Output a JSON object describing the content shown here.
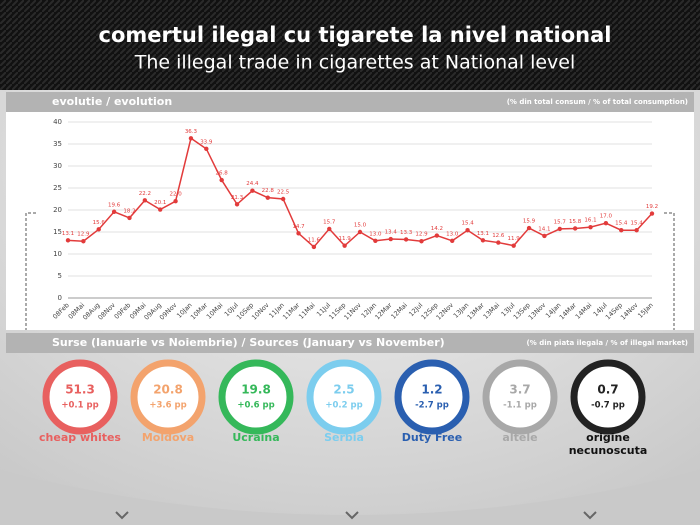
{
  "header": {
    "title": "comertul ilegal cu tigarete la nivel national",
    "subtitle": "The illegal trade in cigarettes at National level"
  },
  "chart_data": {
    "type": "line",
    "title": "evolutie / evolution",
    "subtitle": "(% din total consum / % of total consumption)",
    "categories": [
      "08Feb",
      "08Mai",
      "08Aug",
      "08Nov",
      "09Feb",
      "09Mai",
      "09Aug",
      "09Nov",
      "10Jan",
      "10Mar",
      "10Mai",
      "10Jul",
      "10Sep",
      "10Nov",
      "11Jan",
      "11Mar",
      "11Mai",
      "11Jul",
      "11Sep",
      "11Nov",
      "12Jan",
      "12Mar",
      "12Mai",
      "12Jul",
      "12Sep",
      "12Nov",
      "13Jan",
      "13Mar",
      "13Mai",
      "13Jul",
      "13Sep",
      "13Nov",
      "14Jan",
      "14Mar",
      "14Mai",
      "14Jul",
      "14Sep",
      "14Nov",
      "15Jan"
    ],
    "values": [
      13.1,
      12.9,
      15.6,
      19.6,
      18.2,
      22.2,
      20.1,
      22.0,
      36.3,
      33.9,
      26.8,
      21.3,
      24.4,
      22.8,
      22.5,
      14.7,
      11.6,
      15.7,
      11.9,
      15.0,
      13.0,
      13.4,
      13.3,
      12.9,
      14.2,
      13.0,
      15.4,
      13.1,
      12.6,
      11.9,
      15.9,
      14.1,
      15.7,
      15.8,
      16.1,
      17.0,
      15.4,
      15.4,
      19.2
    ],
    "value_labels": [
      "13.1",
      "12.9",
      "15.6",
      "19.6",
      "18.2",
      "22.2",
      "20.1",
      "22.0",
      "36.3",
      "33.9",
      "26.8",
      "21.3",
      "24.4",
      "22.8",
      "22.5",
      "14.7",
      "11.6",
      "15.7",
      "11.9",
      "15.0",
      "13.0",
      "13.4",
      "13.3",
      "12.9",
      "14.2",
      "13.0",
      "15.4",
      "13.1",
      "12.6",
      "11.9",
      "15.9",
      "14.1",
      "15.7",
      "15.8",
      "16.1",
      "17.0",
      "15.4",
      "15.4",
      "19.2"
    ],
    "color": "#e23b3b",
    "ylim": [
      0,
      40
    ],
    "yticks": [
      0,
      5,
      10,
      15,
      20,
      25,
      30,
      35,
      40
    ],
    "grid": true
  },
  "sources": {
    "title": "Surse (Ianuarie vs Noiembrie) / Sources (January vs November)",
    "note": "(% din piata ilegala / % of illegal market)",
    "items": [
      {
        "value": "51.3",
        "change": "+0.1 pp",
        "name": "cheap whites",
        "color": "#e8605f"
      },
      {
        "value": "20.8",
        "change": "+3.6 pp",
        "name": "Moldova",
        "color": "#f3a36d"
      },
      {
        "value": "19.8",
        "change": "+0.6 pp",
        "name": "Ucraina",
        "color": "#35b85a"
      },
      {
        "value": "2.5",
        "change": "+0.2 pp",
        "name": "Serbia",
        "color": "#7ccdee"
      },
      {
        "value": "1.2",
        "change": "-2.7 pp",
        "name": "Duty Free",
        "color": "#2a5fb0"
      },
      {
        "value": "3.7",
        "change": "-1.1 pp",
        "name": "altele",
        "color": "#a8a8a8"
      },
      {
        "value": "0.7",
        "change": "-0.7 pp",
        "name": "origine necunoscuta",
        "color": "#222222"
      }
    ]
  }
}
